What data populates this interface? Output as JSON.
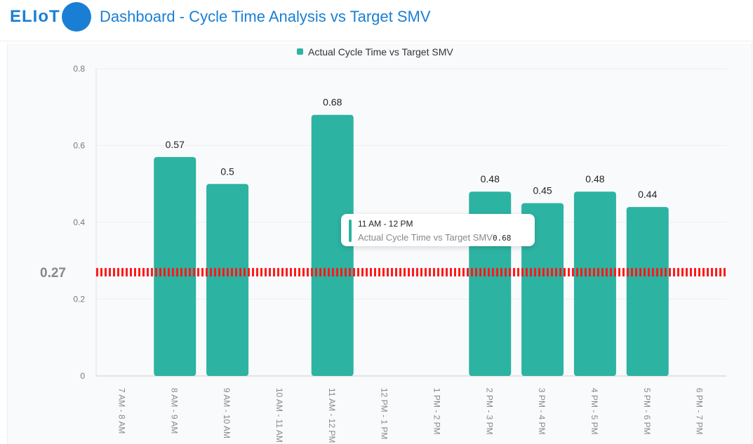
{
  "header": {
    "logo": "ELIoT",
    "title": "Dashboard - Cycle Time Analysis vs Target SMV"
  },
  "tooltip": {
    "title": "11 AM - 12 PM",
    "series": "Actual Cycle Time vs Target SMV",
    "value": "0.68"
  },
  "chart_data": {
    "type": "bar",
    "categories": [
      "7 AM - 8 AM",
      "8 AM - 9 AM",
      "9 AM - 10 AM",
      "10 AM - 11 AM",
      "11 AM - 12 PM",
      "12 PM - 1 PM",
      "1 PM - 2 PM",
      "2 PM - 3 PM",
      "3 PM - 4 PM",
      "4 PM - 5 PM",
      "5 PM - 6 PM",
      "6 PM - 7 PM"
    ],
    "series": [
      {
        "name": "Actual Cycle Time vs Target SMV",
        "values": [
          null,
          0.57,
          0.5,
          null,
          0.68,
          null,
          null,
          0.48,
          0.45,
          0.48,
          0.44,
          null
        ],
        "color": "#2db3a2"
      }
    ],
    "target": {
      "value": 0.27,
      "label": "0.27",
      "color": "#ff1a1a"
    },
    "ylim": [
      0,
      0.8
    ],
    "yticks": [
      "0",
      "0.2",
      "0.4",
      "0.6",
      "0.8"
    ],
    "legend": "top-center",
    "grid": true
  }
}
